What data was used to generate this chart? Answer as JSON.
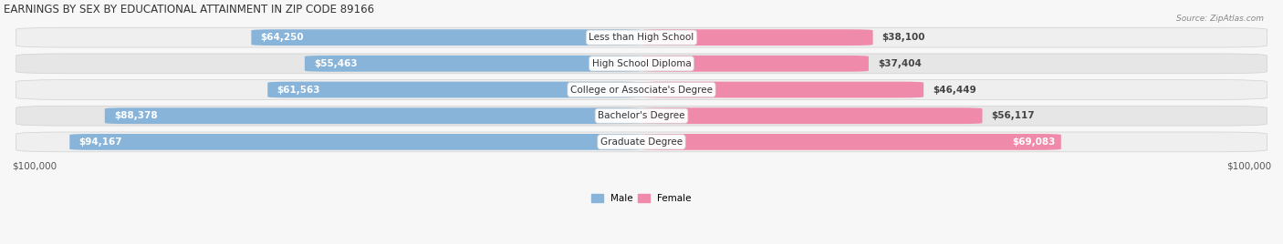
{
  "title": "EARNINGS BY SEX BY EDUCATIONAL ATTAINMENT IN ZIP CODE 89166",
  "source": "Source: ZipAtlas.com",
  "categories": [
    "Less than High School",
    "High School Diploma",
    "College or Associate's Degree",
    "Bachelor's Degree",
    "Graduate Degree"
  ],
  "male_values": [
    64250,
    55463,
    61563,
    88378,
    94167
  ],
  "female_values": [
    38100,
    37404,
    46449,
    56117,
    69083
  ],
  "max_value": 100000,
  "male_color": "#88b4d9",
  "female_color": "#f08aaa",
  "male_label": "Male",
  "female_label": "Female",
  "axis_label": "$100,000",
  "bar_height": 0.62,
  "background_color": "#f7f7f7",
  "label_fontsize": 7.5,
  "title_fontsize": 8.5,
  "category_fontsize": 7.5,
  "row_bg_even": "#efefef",
  "row_bg_odd": "#e5e5e5",
  "male_label_color_inside": "white",
  "female_label_color_outside": "#444444",
  "female_label_color_inside": "white"
}
